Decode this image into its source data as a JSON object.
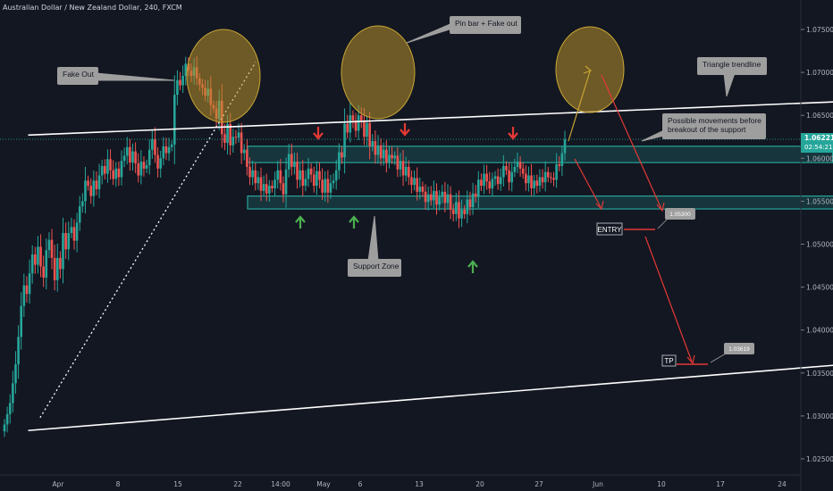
{
  "title": "Australian Dollar / New Zealand Dollar, 240, FXCM",
  "colors": {
    "background": "#131722",
    "up": "#26a69a",
    "down": "#ef5350",
    "trendline": "#ffffff",
    "zone": "#26a69a",
    "circle": "#b8922a",
    "arrow_down": "#e53935",
    "arrow_up": "#4caf50",
    "projection": "#e53935",
    "callout": "#9e9e9e",
    "current_price": "#26a69a"
  },
  "chart_data": {
    "type": "candlestick",
    "title": "Australian Dollar / New Zealand Dollar, 240, FXCM",
    "x_ticks": [
      "Apr",
      "8",
      "15",
      "22",
      "14:00",
      "May",
      "6",
      "13",
      "20",
      "27",
      "Jun",
      "10",
      "17",
      "24"
    ],
    "y_ticks": [
      "1.07500",
      "1.07000",
      "1.06500",
      "1.06000",
      "1.05500",
      "1.05000",
      "1.04500",
      "1.04000",
      "1.03500",
      "1.03000",
      "1.02500"
    ],
    "ylim": [
      1.0225,
      1.0782
    ],
    "current_price": {
      "value": "1.06221",
      "countdown": "02:54:21"
    },
    "entry_price": "1.05300",
    "tp_price": "1.03619",
    "annotations": {
      "fake_out": "Fake Out",
      "pin_bar": "Pin bar + Fake out",
      "triangle": "Triangle trendline",
      "possible": "Possible movements before breakout of the support",
      "support": "Support Zone",
      "entry": "ENTRY",
      "tp": "TP"
    },
    "zones": [
      {
        "name": "resistance zone",
        "top": 1.0614,
        "bottom": 1.0595,
        "from": 0,
        "to": 9.77
      },
      {
        "name": "support zone",
        "top": 1.0556,
        "bottom": 1.0541,
        "from": 0,
        "to": 10.68
      }
    ],
    "trendlines": [
      {
        "name": "upper triangle trendline",
        "points": [
          [
            -0.5,
            1.0627
          ],
          [
            14.8,
            1.0671
          ]
        ]
      },
      {
        "name": "lower triangle trendline",
        "points": [
          [
            -0.5,
            1.0283
          ],
          [
            14.2,
            1.0366
          ]
        ]
      },
      {
        "name": "rising dotted trendline",
        "points": [
          [
            -0.3,
            1.0298
          ],
          [
            3.3,
            1.0712
          ]
        ]
      }
    ],
    "candles_close": [
      1.029,
      1.0302,
      1.0315,
      1.0338,
      1.036,
      1.0392,
      1.0428,
      1.0452,
      1.0442,
      1.0466,
      1.0488,
      1.0476,
      1.0497,
      1.0474,
      1.0461,
      1.0493,
      1.0505,
      1.0484,
      1.0458,
      1.0484,
      1.0471,
      1.0513,
      1.0494,
      1.0513,
      1.052,
      1.0504,
      1.0525,
      1.0544,
      1.055,
      1.0574,
      1.0568,
      1.0556,
      1.0574,
      1.0564,
      1.058,
      1.0591,
      1.0582,
      1.0599,
      1.0586,
      1.0576,
      1.0588,
      1.0578,
      1.0597,
      1.0603,
      1.0613,
      1.0595,
      1.0608,
      1.0594,
      1.058,
      1.0596,
      1.0588,
      1.0592,
      1.061,
      1.0622,
      1.0604,
      1.0588,
      1.06,
      1.0614,
      1.0606,
      1.0613,
      1.0616,
      1.0674,
      1.0691,
      1.0685,
      1.0696,
      1.071,
      1.0702,
      1.0696,
      1.0706,
      1.0693,
      1.0686,
      1.0682,
      1.0673,
      1.0681,
      1.0662,
      1.0658,
      1.0646,
      1.0667,
      1.0628,
      1.0618,
      1.064,
      1.0615,
      1.0625,
      1.0624,
      1.063,
      1.0606,
      1.061,
      1.059,
      1.0578,
      1.0586,
      1.0571,
      1.0578,
      1.0562,
      1.057,
      1.0559,
      1.0568,
      1.0565,
      1.0575,
      1.0586,
      1.0571,
      1.0558,
      1.0587,
      1.0605,
      1.059,
      1.0596,
      1.0575,
      1.0586,
      1.0568,
      1.0576,
      1.0588,
      1.0581,
      1.0568,
      1.0585,
      1.0575,
      1.056,
      1.0576,
      1.056,
      1.0571,
      1.0574,
      1.0586,
      1.0607,
      1.0601,
      1.064,
      1.063,
      1.065,
      1.0644,
      1.0632,
      1.065,
      1.0644,
      1.0625,
      1.0641,
      1.0614,
      1.062,
      1.0604,
      1.0615,
      1.06,
      1.061,
      1.0595,
      1.0604,
      1.06,
      1.0603,
      1.0587,
      1.0597,
      1.058,
      1.059,
      1.0578,
      1.0569,
      1.0577,
      1.0561,
      1.0567,
      1.0561,
      1.0549,
      1.0558,
      1.0551,
      1.0562,
      1.0546,
      1.0555,
      1.0561,
      1.0548,
      1.0558,
      1.054,
      1.0535,
      1.0549,
      1.053,
      1.054,
      1.0535,
      1.0552,
      1.0543,
      1.0559,
      1.0555,
      1.0575,
      1.0568,
      1.0582,
      1.0573,
      1.0565,
      1.0576,
      1.0579,
      1.057,
      1.0578,
      1.0591,
      1.0586,
      1.0572,
      1.0584,
      1.059,
      1.0596,
      1.0588,
      1.0582,
      1.0571,
      1.058,
      1.0565,
      1.0574,
      1.0568,
      1.0578,
      1.0572,
      1.0584,
      1.0578,
      1.0577,
      1.0575,
      1.0593,
      1.0591,
      1.0606,
      1.0622
    ]
  }
}
